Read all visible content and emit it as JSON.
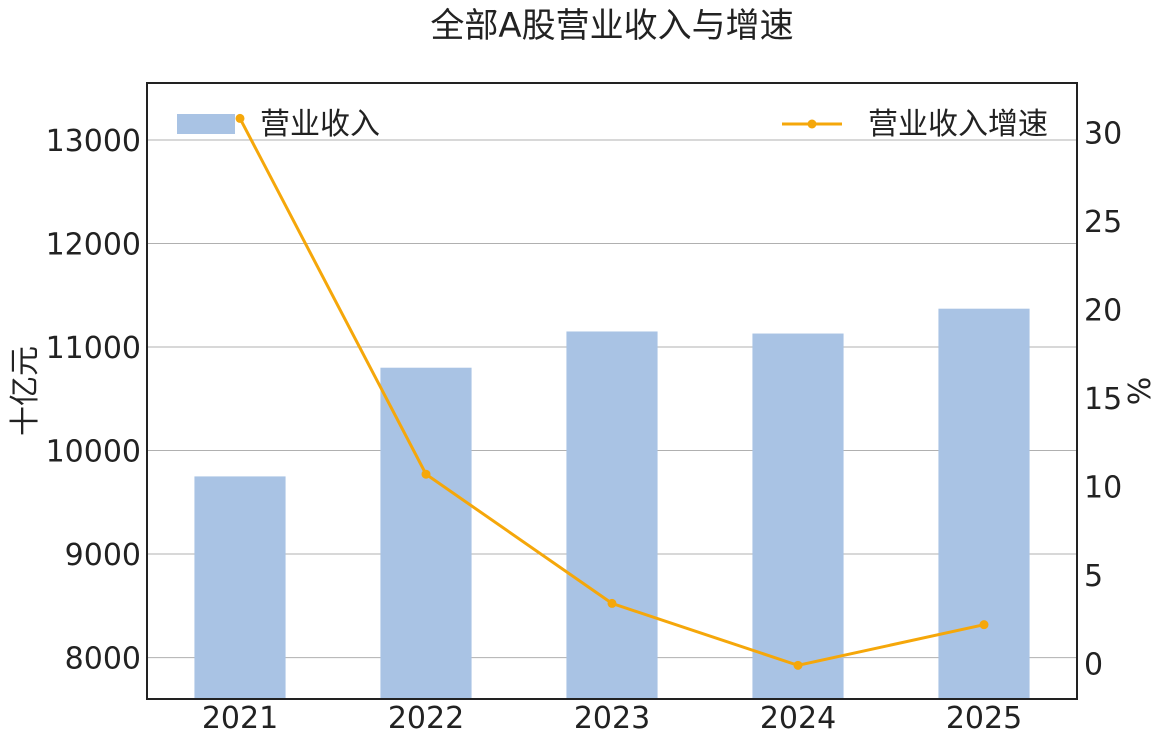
{
  "chart_data": {
    "type": "bar",
    "title": "全部A股营业收入与增速",
    "categories": [
      "2021",
      "2022",
      "2023",
      "2024",
      "2025"
    ],
    "series": [
      {
        "name": "营业收入",
        "type": "bar",
        "axis": "left",
        "color": "#a9c3e4",
        "values": [
          9750,
          10800,
          11150,
          11130,
          11370
        ]
      },
      {
        "name": "营业收入增速",
        "type": "line",
        "axis": "right",
        "color": "#f5a70a",
        "values": [
          30.8,
          10.7,
          3.4,
          -0.1,
          2.2
        ]
      }
    ],
    "ylabel": "十亿元",
    "ylabel_right": "%",
    "ylim": [
      7600,
      13550
    ],
    "ylim_right": [
      -2.0,
      32.8
    ],
    "yticks": [
      "8000",
      "9000",
      "10000",
      "11000",
      "12000",
      "13000"
    ],
    "yticks_right": [
      "0",
      "5",
      "10",
      "15",
      "20",
      "25",
      "30"
    ],
    "grid": true,
    "legend": {
      "bar": "top-left",
      "line": "top-right"
    }
  }
}
